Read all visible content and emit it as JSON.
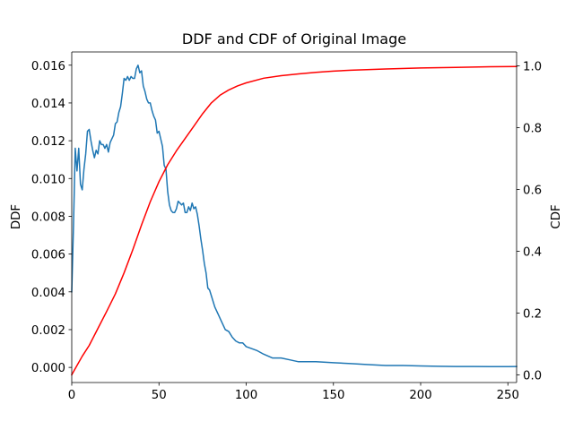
{
  "chart_data": {
    "type": "line",
    "title": "DDF and CDF of Original Image",
    "xlabel": "",
    "ylabel_left": "DDF",
    "ylabel_right": "CDF",
    "xlim": [
      0,
      255
    ],
    "ylim_left": [
      -0.0008,
      0.0167
    ],
    "ylim_right": [
      -0.025,
      1.045
    ],
    "xticks": [
      0,
      50,
      100,
      150,
      200,
      250
    ],
    "xtick_labels": [
      "0",
      "50",
      "100",
      "150",
      "200",
      "250"
    ],
    "yticks_left": [
      0.0,
      0.002,
      0.004,
      0.006,
      0.008,
      0.01,
      0.012,
      0.014,
      0.016
    ],
    "ytick_labels_left": [
      "0.000",
      "0.002",
      "0.004",
      "0.006",
      "0.008",
      "0.010",
      "0.012",
      "0.014",
      "0.016"
    ],
    "yticks_right": [
      0.0,
      0.2,
      0.4,
      0.6,
      0.8,
      1.0
    ],
    "ytick_labels_right": [
      "0.0",
      "0.2",
      "0.4",
      "0.6",
      "0.8",
      "1.0"
    ],
    "grid": false,
    "series": [
      {
        "axis": "left",
        "color": "#1f77b4",
        "x": [
          0,
          1,
          2,
          3,
          4,
          5,
          6,
          7,
          8,
          9,
          10,
          11,
          12,
          13,
          14,
          15,
          16,
          17,
          18,
          19,
          20,
          21,
          22,
          23,
          24,
          25,
          26,
          27,
          28,
          29,
          30,
          31,
          32,
          33,
          34,
          35,
          36,
          37,
          38,
          39,
          40,
          41,
          42,
          43,
          44,
          45,
          46,
          47,
          48,
          49,
          50,
          51,
          52,
          53,
          54,
          55,
          56,
          57,
          58,
          59,
          60,
          61,
          62,
          63,
          64,
          65,
          66,
          67,
          68,
          69,
          70,
          71,
          72,
          73,
          74,
          75,
          76,
          77,
          78,
          79,
          80,
          82,
          84,
          86,
          88,
          90,
          92,
          94,
          96,
          98,
          100,
          103,
          106,
          110,
          115,
          120,
          125,
          130,
          140,
          150,
          160,
          170,
          180,
          190,
          200,
          210,
          220,
          230,
          240,
          250,
          255
        ],
        "y": [
          0.004,
          0.0075,
          0.0116,
          0.0104,
          0.0116,
          0.0097,
          0.0094,
          0.0105,
          0.0113,
          0.0125,
          0.0126,
          0.012,
          0.0115,
          0.0111,
          0.0115,
          0.0113,
          0.012,
          0.0118,
          0.0118,
          0.0116,
          0.0118,
          0.0114,
          0.0119,
          0.0121,
          0.0123,
          0.0129,
          0.013,
          0.0135,
          0.0138,
          0.0145,
          0.0153,
          0.0152,
          0.0154,
          0.0152,
          0.0154,
          0.0153,
          0.0153,
          0.0158,
          0.016,
          0.0156,
          0.0157,
          0.0149,
          0.0146,
          0.0142,
          0.014,
          0.014,
          0.0136,
          0.0133,
          0.0131,
          0.0124,
          0.0125,
          0.0121,
          0.0117,
          0.0107,
          0.0105,
          0.0093,
          0.0086,
          0.0083,
          0.0082,
          0.0082,
          0.0084,
          0.0088,
          0.0087,
          0.0086,
          0.0087,
          0.0082,
          0.0082,
          0.0085,
          0.0083,
          0.0087,
          0.0084,
          0.0085,
          0.0081,
          0.0075,
          0.0068,
          0.0062,
          0.0055,
          0.005,
          0.0042,
          0.0041,
          0.0038,
          0.0032,
          0.0028,
          0.0024,
          0.002,
          0.0019,
          0.0016,
          0.0014,
          0.0013,
          0.0013,
          0.0011,
          0.001,
          0.0009,
          0.0007,
          0.0005,
          0.0005,
          0.0004,
          0.0003,
          0.0003,
          0.00025,
          0.0002,
          0.00015,
          0.0001,
          0.0001,
          8e-05,
          6e-05,
          5e-05,
          5e-05,
          4e-05,
          4e-05,
          5e-05
        ]
      },
      {
        "axis": "right",
        "color": "#ff0000",
        "x": [
          0,
          3,
          6,
          10,
          15,
          20,
          25,
          30,
          35,
          40,
          45,
          50,
          55,
          60,
          65,
          70,
          75,
          80,
          85,
          90,
          95,
          100,
          110,
          120,
          130,
          140,
          150,
          160,
          180,
          200,
          220,
          240,
          255
        ],
        "y": [
          0.0,
          0.03,
          0.06,
          0.095,
          0.15,
          0.205,
          0.262,
          0.33,
          0.405,
          0.485,
          0.56,
          0.625,
          0.68,
          0.725,
          0.765,
          0.805,
          0.845,
          0.88,
          0.905,
          0.922,
          0.935,
          0.945,
          0.96,
          0.968,
          0.974,
          0.979,
          0.983,
          0.986,
          0.99,
          0.993,
          0.995,
          0.997,
          0.998
        ]
      }
    ]
  }
}
